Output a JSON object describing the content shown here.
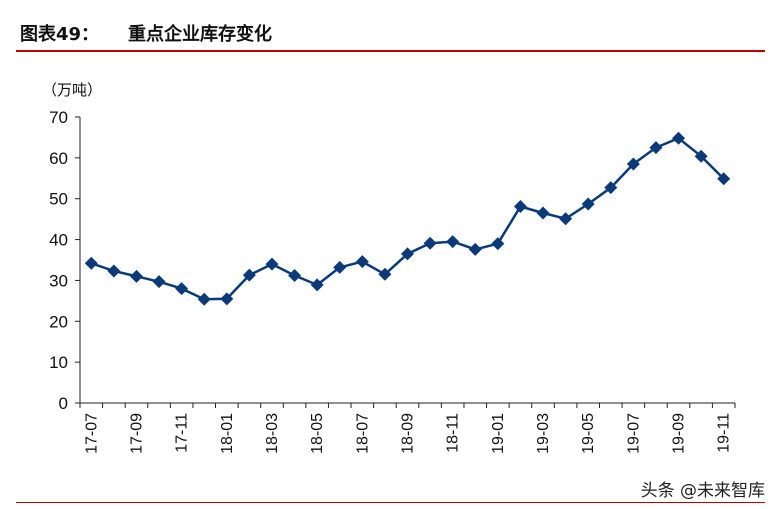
{
  "header": {
    "label": "图表49：",
    "title": "重点企业库存变化"
  },
  "watermark": "头条 @未来智库",
  "colors": {
    "series": "#0a3a7a",
    "accent": "#c00000"
  },
  "chart_data": {
    "type": "line",
    "ylabel": "（万吨）",
    "ylim": [
      0,
      70
    ],
    "yticks": [
      0,
      10,
      20,
      30,
      40,
      50,
      60,
      70
    ],
    "x": [
      "17-07",
      "17-08",
      "17-09",
      "17-10",
      "17-11",
      "17-12",
      "18-01",
      "18-02",
      "18-03",
      "18-04",
      "18-05",
      "18-06",
      "18-07",
      "18-08",
      "18-09",
      "18-10",
      "18-11",
      "18-12",
      "19-01",
      "19-02",
      "19-03",
      "19-04",
      "19-05",
      "19-06",
      "19-07",
      "19-08",
      "19-09",
      "19-10",
      "19-11"
    ],
    "xtick_labels": [
      "17-07",
      "17-09",
      "17-11",
      "18-01",
      "18-03",
      "18-05",
      "18-07",
      "18-09",
      "18-11",
      "19-01",
      "19-03",
      "19-05",
      "19-07",
      "19-09",
      "19-11"
    ],
    "series": [
      {
        "values": [
          34.2,
          32.3,
          31.0,
          29.7,
          28.0,
          25.4,
          25.5,
          31.3,
          34.0,
          31.2,
          28.9,
          33.2,
          34.6,
          31.5,
          36.5,
          39.1,
          39.5,
          37.6,
          39.0,
          48.1,
          46.5,
          45.1,
          48.7,
          52.7,
          58.5,
          62.5,
          64.8,
          60.4,
          54.9
        ]
      }
    ]
  }
}
